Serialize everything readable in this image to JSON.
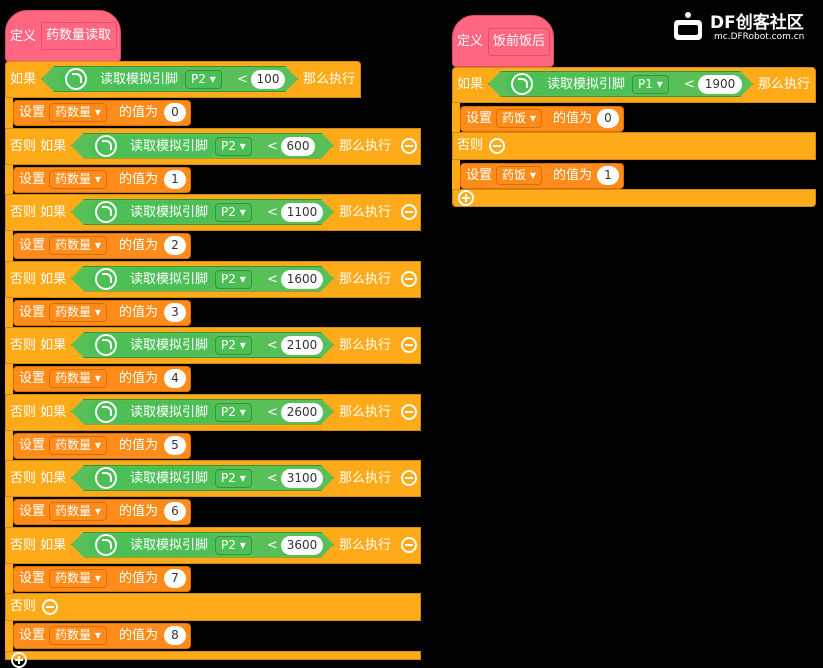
{
  "logo": {
    "brand": "DF创客社区",
    "url": "mc.DFRobot.com.cn"
  },
  "left_program": {
    "define_label": "定义",
    "proc_name": "药数量读取",
    "if_label": "如果",
    "elseif_label": "否则 如果",
    "else_label": "否则",
    "then_label": "那么执行",
    "sensor_label": "读取模拟引脚",
    "pin": "P2",
    "operator": "<",
    "set_label": "设置",
    "set_var": "药数量",
    "set_value_label": "的值为",
    "branches": [
      {
        "threshold": "100",
        "value": "0"
      },
      {
        "threshold": "600",
        "value": "1"
      },
      {
        "threshold": "1100",
        "value": "2"
      },
      {
        "threshold": "1600",
        "value": "3"
      },
      {
        "threshold": "2100",
        "value": "4"
      },
      {
        "threshold": "2600",
        "value": "5"
      },
      {
        "threshold": "3100",
        "value": "6"
      },
      {
        "threshold": "3600",
        "value": "7"
      }
    ],
    "else_value": "8"
  },
  "right_program": {
    "define_label": "定义",
    "proc_name": "饭前饭后",
    "if_label": "如果",
    "else_label": "否则",
    "then_label": "那么执行",
    "sensor_label": "读取模拟引脚",
    "pin": "P1",
    "operator": "<",
    "threshold": "1900",
    "set_label": "设置",
    "set_var": "药饭",
    "set_value_label": "的值为",
    "if_value": "0",
    "else_value": "1"
  }
}
